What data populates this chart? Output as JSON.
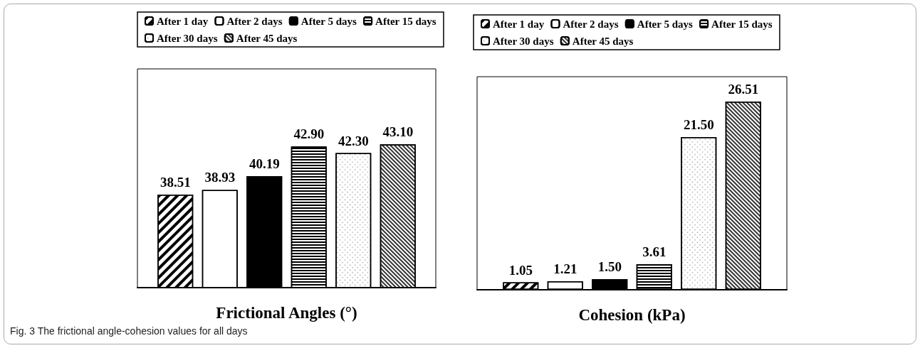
{
  "chart_data": [
    {
      "type": "bar",
      "xlabel": "Frictional Angles (°)",
      "categories": [
        null
      ],
      "ylim": [
        30,
        50
      ],
      "grid": false,
      "legend": "top",
      "tick_labels": false,
      "series": [
        {
          "name": "After 1 day",
          "color": "#ffffff",
          "values": [
            38.51
          ],
          "value_labels": [
            "38.51"
          ]
        },
        {
          "name": "After 2 days",
          "color": "#ffffff",
          "values": [
            38.93
          ],
          "value_labels": [
            "38.93"
          ]
        },
        {
          "name": "After 5 days",
          "color": "#000000",
          "values": [
            40.19
          ],
          "value_labels": [
            "40.19"
          ]
        },
        {
          "name": "After 15 days",
          "color": "#ffffff",
          "values": [
            42.9
          ],
          "value_labels": [
            "42.90"
          ]
        },
        {
          "name": "After 30 days",
          "color": "#ffffff",
          "values": [
            42.3
          ],
          "value_labels": [
            "42.30"
          ]
        },
        {
          "name": "After 45 days",
          "color": "#ffffff",
          "values": [
            43.1
          ],
          "value_labels": [
            "43.10"
          ]
        }
      ],
      "annotations": [
        "Fig. 3 The frictional angle-cohesion values for all days"
      ]
    },
    {
      "type": "bar",
      "xlabel": "Cohesion (kPa)",
      "categories": [
        null
      ],
      "ylim": [
        0,
        30
      ],
      "grid": false,
      "legend": "top",
      "tick_labels": false,
      "series": [
        {
          "name": "After 1 day",
          "color": "#ffffff",
          "values": [
            1.05
          ],
          "value_labels": [
            "1.05"
          ]
        },
        {
          "name": "After 2 days",
          "color": "#ffffff",
          "values": [
            1.21
          ],
          "value_labels": [
            "1.21"
          ]
        },
        {
          "name": "After 5 days",
          "color": "#000000",
          "values": [
            1.5
          ],
          "value_labels": [
            "1.50"
          ]
        },
        {
          "name": "After 15 days",
          "color": "#ffffff",
          "values": [
            3.61
          ],
          "value_labels": [
            "3.61"
          ]
        },
        {
          "name": "After 30 days",
          "color": "#ffffff",
          "values": [
            21.5
          ],
          "value_labels": [
            "21.50"
          ]
        },
        {
          "name": "After 45 days",
          "color": "#ffffff",
          "values": [
            26.51
          ],
          "value_labels": [
            "26.51"
          ]
        }
      ]
    }
  ]
}
